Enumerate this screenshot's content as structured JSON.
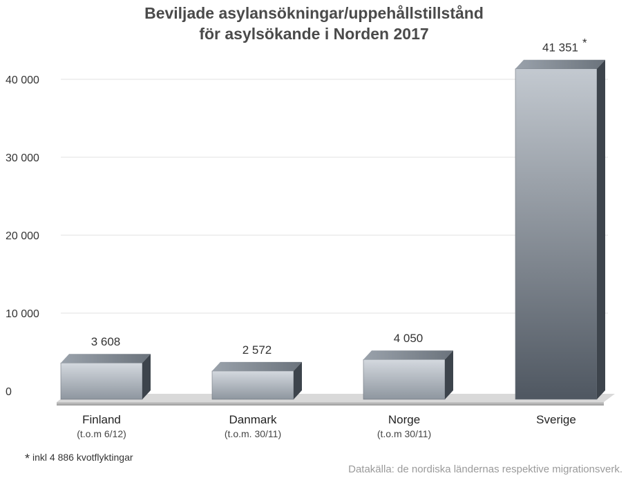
{
  "chart_data": {
    "type": "bar",
    "title_lines": [
      "Beviljade asylansökningar/uppehållstillstånd",
      "för asylsökande i Norden 2017"
    ],
    "categories": [
      "Finland",
      "Danmark",
      "Norge",
      "Sverige"
    ],
    "sublabels": [
      "(t.o.m 6/12)",
      "(t.o.m. 30/11)",
      "(t.o.m 30/11)",
      ""
    ],
    "values": [
      3608,
      2572,
      4050,
      41351
    ],
    "value_labels": [
      "3 608",
      "2 572",
      "4 050",
      "41 351"
    ],
    "value_marks": [
      "",
      "",
      "",
      "*"
    ],
    "ylim": [
      0,
      40000
    ],
    "yticks": [
      0,
      10000,
      20000,
      30000,
      40000
    ],
    "ytick_labels": [
      "0",
      "10 000",
      "20 000",
      "30 000",
      "40 000"
    ],
    "grid": true,
    "colors": {
      "bar_light": "#d2d7dd",
      "bar_dark": "#4e5660",
      "floor": "#b8b8b8"
    }
  },
  "footnote": {
    "mark": "*",
    "text": "inkl 4 886 kvotflyktingar"
  },
  "source": "Datakälla: de nordiska ländernas respektive migrationsverk."
}
